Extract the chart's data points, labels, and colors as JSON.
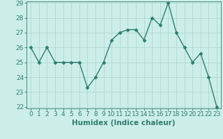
{
  "x": [
    0,
    1,
    2,
    3,
    4,
    5,
    6,
    7,
    8,
    9,
    10,
    11,
    12,
    13,
    14,
    15,
    16,
    17,
    18,
    19,
    20,
    21,
    22,
    23
  ],
  "y": [
    26.0,
    25.0,
    26.0,
    25.0,
    25.0,
    25.0,
    25.0,
    23.3,
    24.0,
    25.0,
    26.5,
    27.0,
    27.2,
    27.2,
    26.5,
    28.0,
    27.5,
    29.0,
    27.0,
    26.0,
    25.0,
    25.6,
    24.0,
    22.0
  ],
  "line_color": "#2e7d6e",
  "marker": "D",
  "marker_size": 2.5,
  "bg_color": "#cceee8",
  "grid_color": "#b0d8d0",
  "xlabel": "Humidex (Indice chaleur)",
  "ylim": [
    22,
    29
  ],
  "xlim": [
    -0.5,
    23.5
  ],
  "yticks": [
    22,
    23,
    24,
    25,
    26,
    27,
    28,
    29
  ],
  "xticks": [
    0,
    1,
    2,
    3,
    4,
    5,
    6,
    7,
    8,
    9,
    10,
    11,
    12,
    13,
    14,
    15,
    16,
    17,
    18,
    19,
    20,
    21,
    22,
    23
  ],
  "xlabel_fontsize": 7.5,
  "tick_fontsize": 6.5,
  "tick_color": "#2e7d6e",
  "axis_color": "#2e7d6e",
  "linewidth": 1.0
}
